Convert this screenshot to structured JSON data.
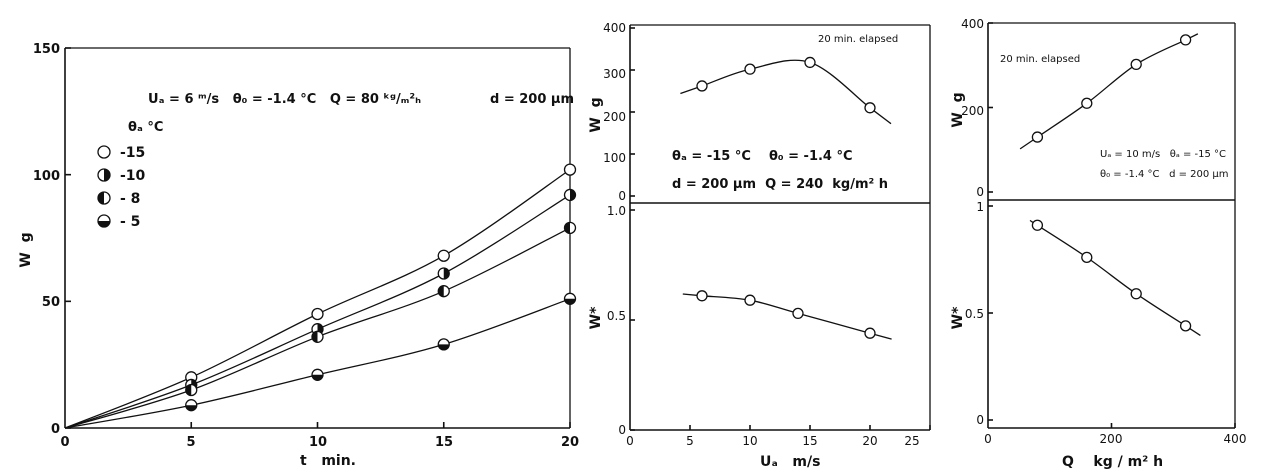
{
  "chart_data": [
    {
      "id": "left",
      "type": "line",
      "xlabel": "t   min.",
      "ylabel": "W  g",
      "xlim": [
        0,
        20
      ],
      "ylim": [
        0,
        150
      ],
      "xticks": [
        "0",
        "5",
        "10",
        "15",
        "20"
      ],
      "yticks": [
        "0",
        "50",
        "100",
        "150"
      ],
      "annotations": [
        "Uₐ = 6 ᵐ/s   θ₀ = -1.4 °C   Q = 80 ᵏᵍ/ₘ²ₕ",
        "d = 200 µm"
      ],
      "legend_title": "θₐ °C",
      "legend_labels": [
        "-15",
        "-10",
        "- 8",
        "- 5"
      ],
      "x": [
        0,
        5,
        10,
        15,
        20
      ],
      "series": [
        {
          "name": "-15",
          "marker": "open",
          "values": [
            0,
            20,
            45,
            68,
            102
          ]
        },
        {
          "name": "-10",
          "marker": "half-right",
          "values": [
            0,
            17,
            39,
            61,
            92
          ]
        },
        {
          "name": "- 8",
          "marker": "half-left",
          "values": [
            0,
            15,
            36,
            54,
            79
          ]
        },
        {
          "name": "- 5",
          "marker": "half-bottom",
          "values": [
            0,
            9,
            21,
            33,
            51
          ]
        }
      ]
    },
    {
      "id": "mid-top",
      "type": "line",
      "ylabel": "W  g",
      "xlim": [
        0,
        25
      ],
      "ylim": [
        0,
        400
      ],
      "yticks": [
        "0",
        "100",
        "200",
        "300",
        "400"
      ],
      "annotations": [
        "20 min. elapsed",
        "θₐ = -15 °C    θ₀ = -1.4 °C",
        "d = 200 µm  Q = 240  kg/m² h"
      ],
      "x": [
        6,
        10,
        15,
        20
      ],
      "values": [
        262,
        302,
        318,
        210
      ]
    },
    {
      "id": "mid-bottom",
      "type": "line",
      "xlabel": "Uₐ   m/s",
      "ylabel": "W*",
      "xlim": [
        0,
        25
      ],
      "ylim": [
        0,
        1.0
      ],
      "xticks": [
        "0",
        "5",
        "10",
        "15",
        "20",
        "25"
      ],
      "yticks": [
        "0",
        "0.5",
        "1.0"
      ],
      "x": [
        6,
        10,
        14,
        20
      ],
      "values": [
        0.61,
        0.59,
        0.53,
        0.44
      ]
    },
    {
      "id": "right-top",
      "type": "line",
      "ylabel": "W  g",
      "xlim": [
        0,
        400
      ],
      "ylim": [
        0,
        400
      ],
      "yticks": [
        "0",
        "200",
        "400"
      ],
      "annotations": [
        "20 min. elapsed",
        "Uₐ = 10 m/s   θₐ = -15 °C",
        "θ₀ = -1.4 °C   d = 200 µm"
      ],
      "x": [
        80,
        160,
        240,
        320
      ],
      "values": [
        130,
        210,
        302,
        360
      ]
    },
    {
      "id": "right-bottom",
      "type": "line",
      "xlabel": "Q    kg / m² h",
      "ylabel": "W*",
      "xlim": [
        0,
        400
      ],
      "ylim": [
        0,
        1
      ],
      "xticks": [
        "0",
        "200",
        "400"
      ],
      "yticks": [
        "0",
        "0.5",
        "1"
      ],
      "x": [
        80,
        160,
        240,
        320
      ],
      "values": [
        0.91,
        0.76,
        0.59,
        0.44
      ]
    }
  ]
}
